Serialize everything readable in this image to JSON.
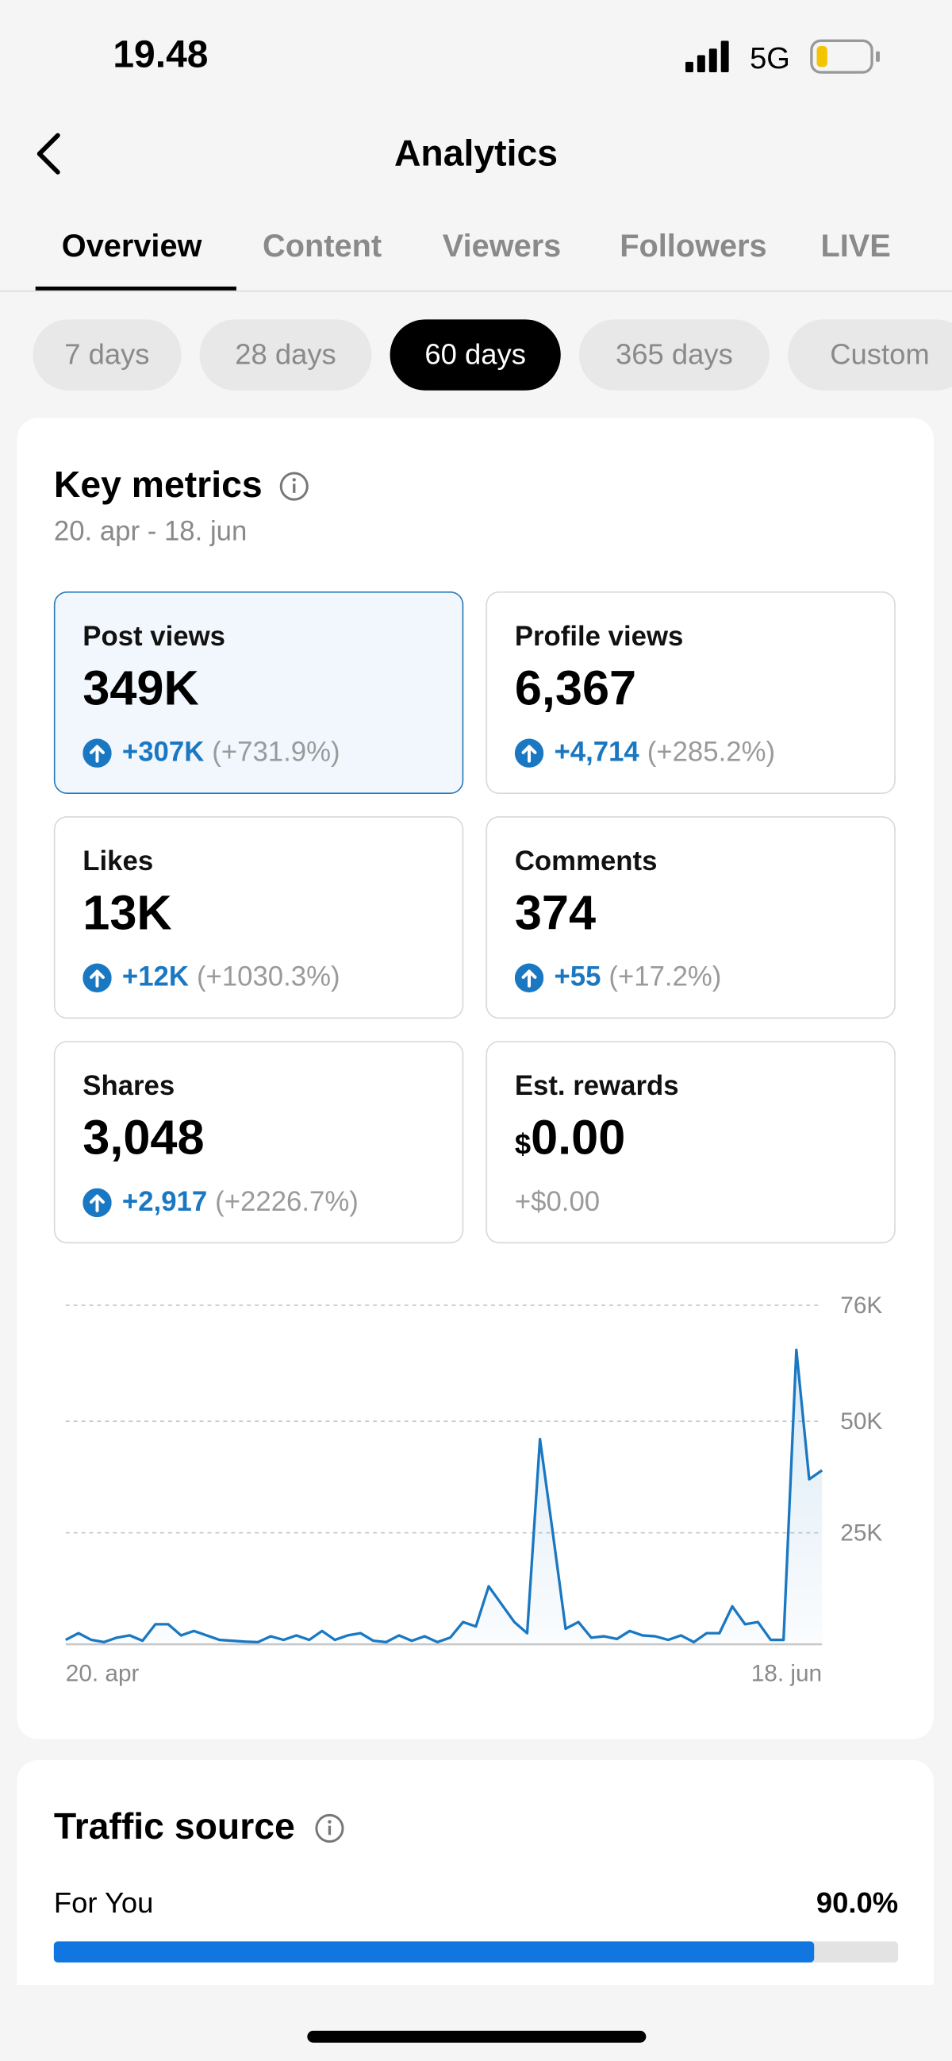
{
  "status_bar": {
    "time": "19.48",
    "network": "5G"
  },
  "header": {
    "title": "Analytics"
  },
  "tabs": [
    "Overview",
    "Content",
    "Viewers",
    "Followers",
    "LIVE"
  ],
  "ranges": [
    "7 days",
    "28 days",
    "60 days",
    "365 days",
    "Custom"
  ],
  "key_metrics": {
    "title": "Key metrics",
    "date_range": "20. apr - 18. jun",
    "metrics": [
      {
        "label": "Post views",
        "value": "349K",
        "change": "+307K",
        "percent": "(+731.9%)"
      },
      {
        "label": "Profile views",
        "value": "6,367",
        "change": "+4,714",
        "percent": "(+285.2%)"
      },
      {
        "label": "Likes",
        "value": "13K",
        "change": "+12K",
        "percent": "(+1030.3%)"
      },
      {
        "label": "Comments",
        "value": "374",
        "change": "+55",
        "percent": "(+17.2%)"
      },
      {
        "label": "Shares",
        "value": "3,048",
        "change": "+2,917",
        "percent": "(+2226.7%)"
      },
      {
        "label": "Est. rewards",
        "currency": "$",
        "value": "0.00",
        "change": "+$0.00"
      }
    ]
  },
  "chart_data": {
    "type": "line",
    "color": "#1a78c2",
    "categories": [
      "20. apr",
      null,
      null,
      null,
      null,
      null,
      null,
      null,
      null,
      null,
      null,
      null,
      null,
      null,
      null,
      null,
      null,
      null,
      null,
      null,
      null,
      null,
      null,
      null,
      null,
      null,
      null,
      null,
      null,
      null,
      null,
      null,
      null,
      null,
      null,
      null,
      null,
      null,
      null,
      null,
      null,
      null,
      null,
      null,
      null,
      null,
      null,
      null,
      null,
      null,
      null,
      null,
      null,
      null,
      null,
      null,
      null,
      null,
      null,
      "18. jun"
    ],
    "values": [
      1000,
      2500,
      1000,
      500,
      1500,
      2000,
      800,
      4500,
      4500,
      2000,
      3000,
      2000,
      1000,
      800,
      600,
      500,
      1800,
      1000,
      2000,
      1000,
      3000,
      1000,
      2000,
      2500,
      800,
      500,
      2000,
      800,
      1800,
      500,
      1500,
      5000,
      4000,
      13000,
      9000,
      5000,
      2500,
      46000,
      25000,
      3500,
      5000,
      1500,
      1800,
      1200,
      3000,
      2000,
      1800,
      1000,
      2000,
      500,
      2500,
      2500,
      8500,
      4500,
      5000,
      1000,
      1000,
      66000,
      37000,
      39000
    ],
    "ylim": [
      0,
      76000
    ],
    "yticks": [
      {
        "value": 25000,
        "label": "25K"
      },
      {
        "value": 50000,
        "label": "50K"
      },
      {
        "value": 76000,
        "label": "76K"
      }
    ],
    "grid": true
  },
  "traffic_source": {
    "title": "Traffic source",
    "items": [
      {
        "label": "For You",
        "value": 90.0,
        "value_label": "90.0%"
      }
    ]
  }
}
